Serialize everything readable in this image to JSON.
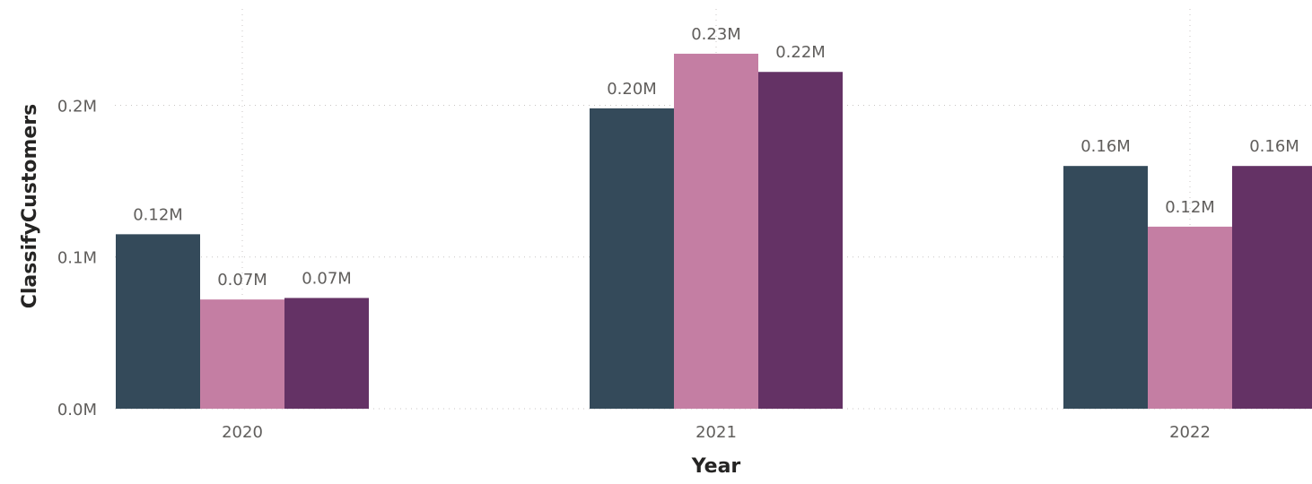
{
  "chart_data": {
    "type": "bar",
    "title": "",
    "xlabel": "Year",
    "ylabel": "ClassifyCustomers",
    "categories": [
      "2020",
      "2021",
      "2022"
    ],
    "series": [
      {
        "values": [
          0.115,
          0.198,
          0.16
        ],
        "labels": [
          "0.12M",
          "0.20M",
          "0.16M"
        ],
        "color": "#344A5A"
      },
      {
        "values": [
          0.072,
          0.234,
          0.12
        ],
        "labels": [
          "0.07M",
          "0.23M",
          "0.12M"
        ],
        "color": "#C47EA3"
      },
      {
        "values": [
          0.073,
          0.222,
          0.16
        ],
        "labels": [
          "0.07M",
          "0.22M",
          "0.16M"
        ],
        "color": "#643265"
      }
    ],
    "yticks": [
      {
        "value": 0.0,
        "label": "0.0M"
      },
      {
        "value": 0.1,
        "label": "0.1M"
      },
      {
        "value": 0.2,
        "label": "0.2M"
      }
    ],
    "ylim": [
      0,
      0.2635
    ],
    "grid": true,
    "legend": "none"
  }
}
